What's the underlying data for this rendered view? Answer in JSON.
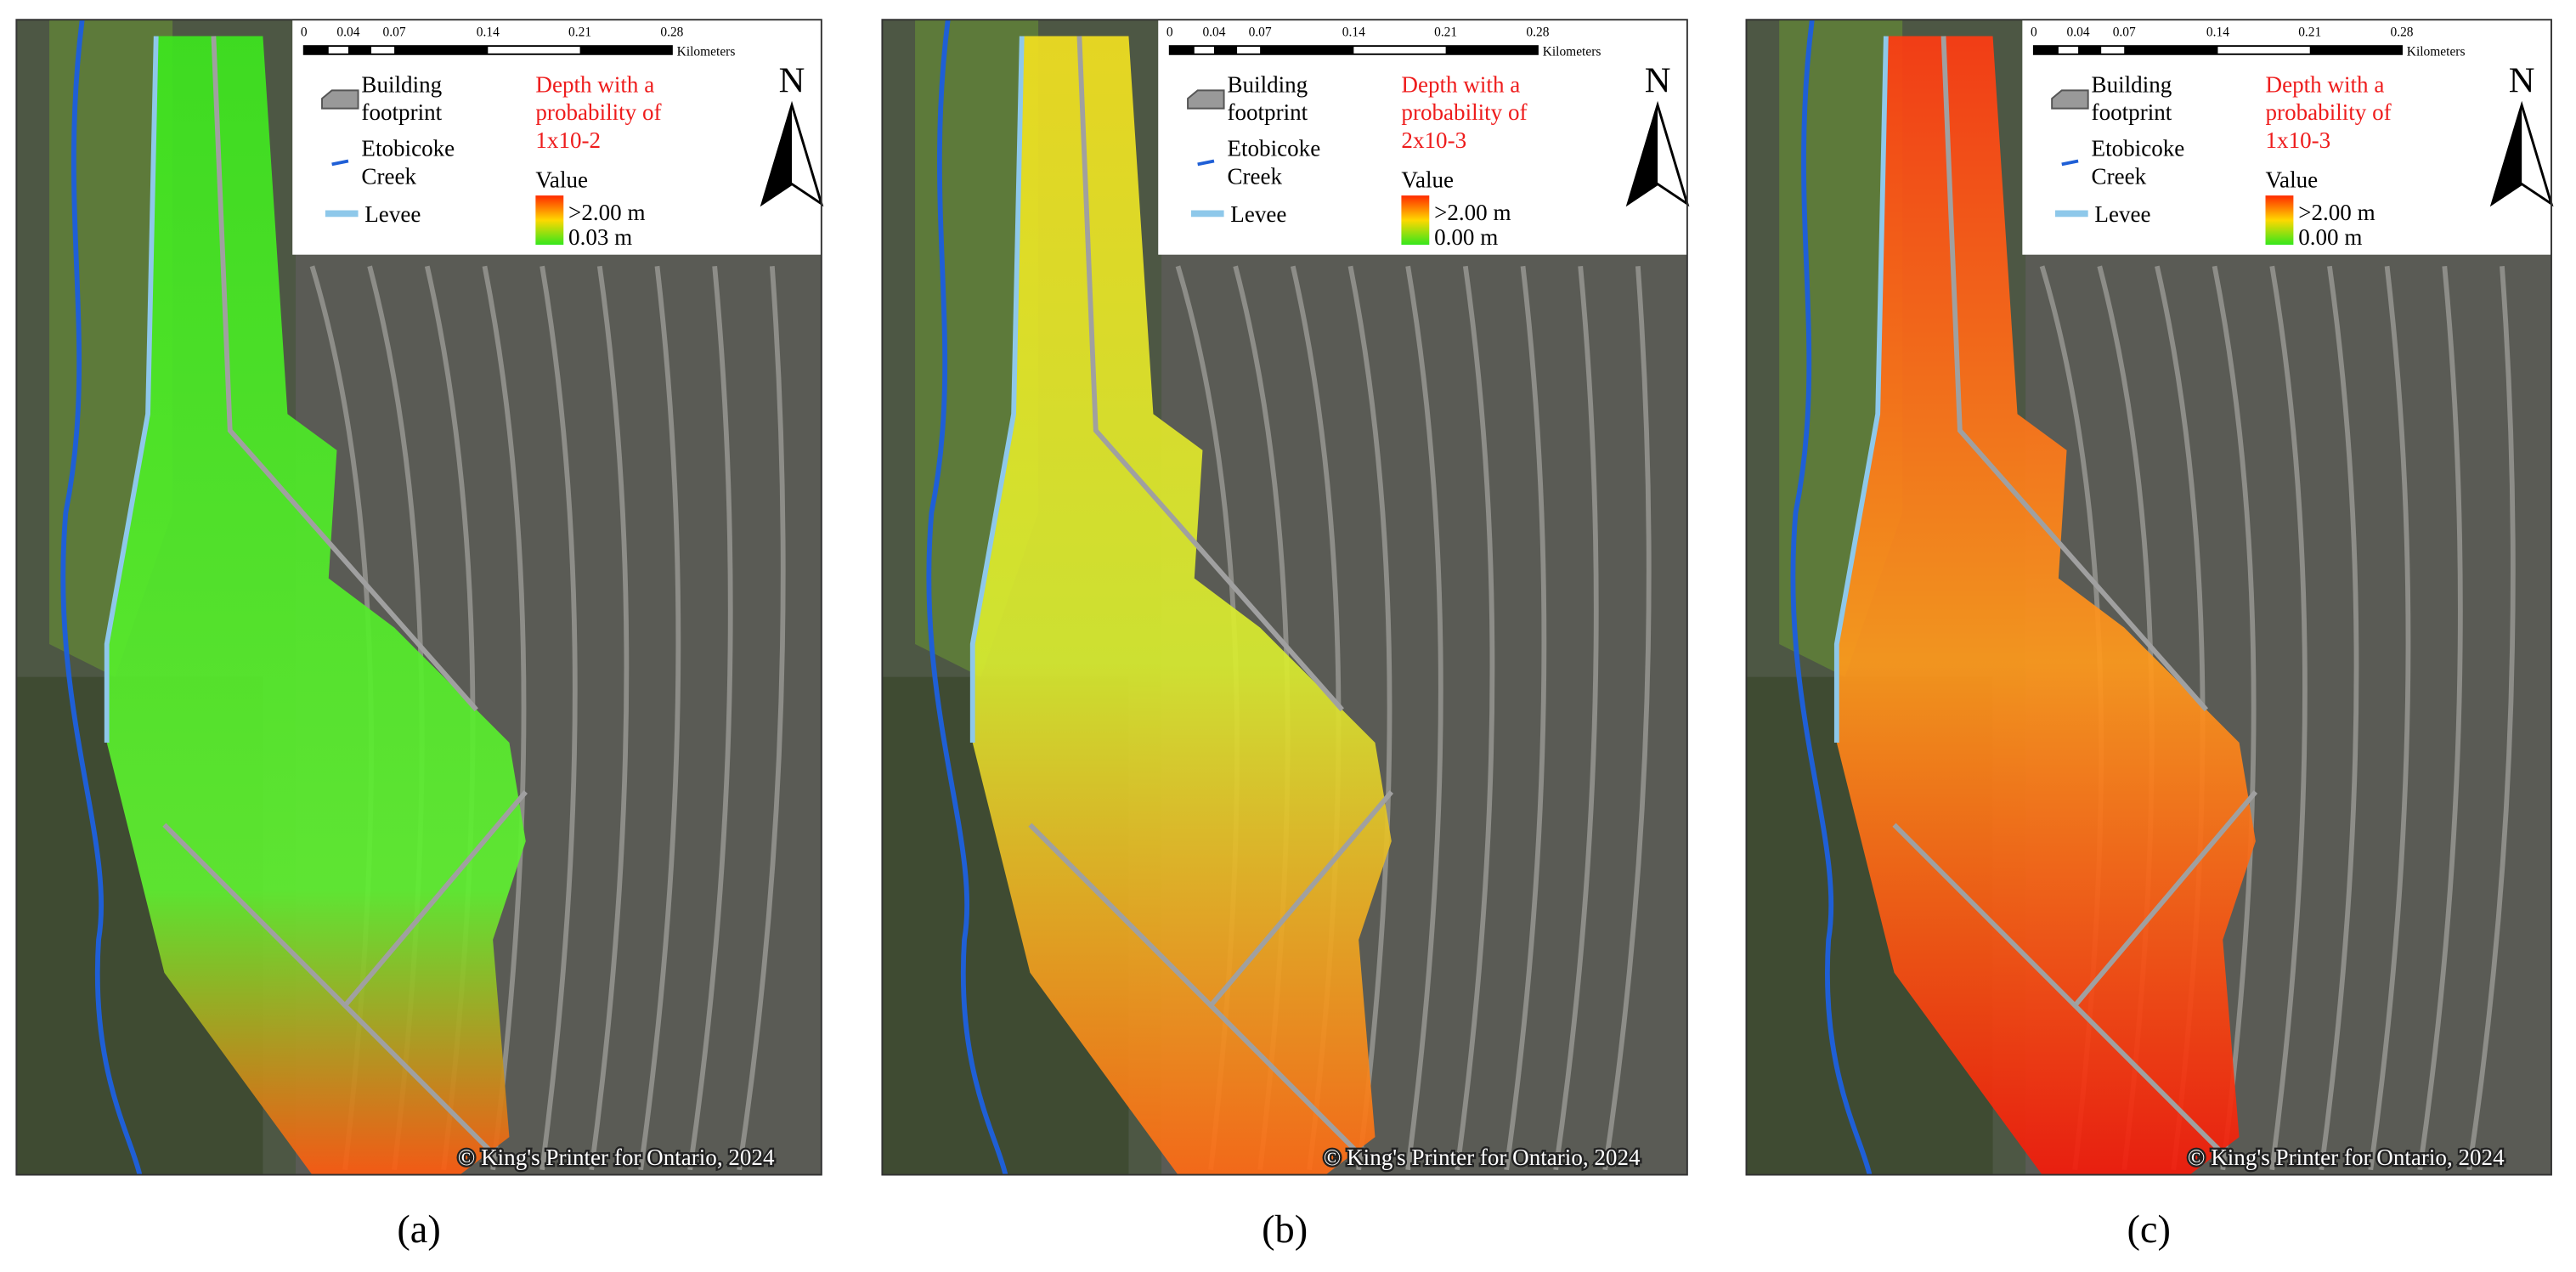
{
  "scale_bar": {
    "labels": [
      "0",
      "0.04",
      "0.07",
      "0.14",
      "0.21",
      "0.28"
    ],
    "unit": "Kilometers"
  },
  "legend": {
    "building": "Building footprint",
    "creek": "Etobicoke Creek",
    "levee": "Levee",
    "value": "Value",
    "north": "N"
  },
  "copyright": "© King's Printer for Ontario, 2024",
  "panels": [
    {
      "caption": "(a)",
      "depth_title": "Depth with a probability of 1x10-2",
      "max_label": ">2.00 m",
      "min_label": "0.03 m"
    },
    {
      "caption": "(b)",
      "depth_title": "Depth with a probability of 2x10-3",
      "max_label": ">2.00 m",
      "min_label": "0.00 m"
    },
    {
      "caption": "(c)",
      "depth_title": "Depth with a probability of 1x10-3",
      "max_label": ">2.00 m",
      "min_label": "0.00 m"
    }
  ]
}
